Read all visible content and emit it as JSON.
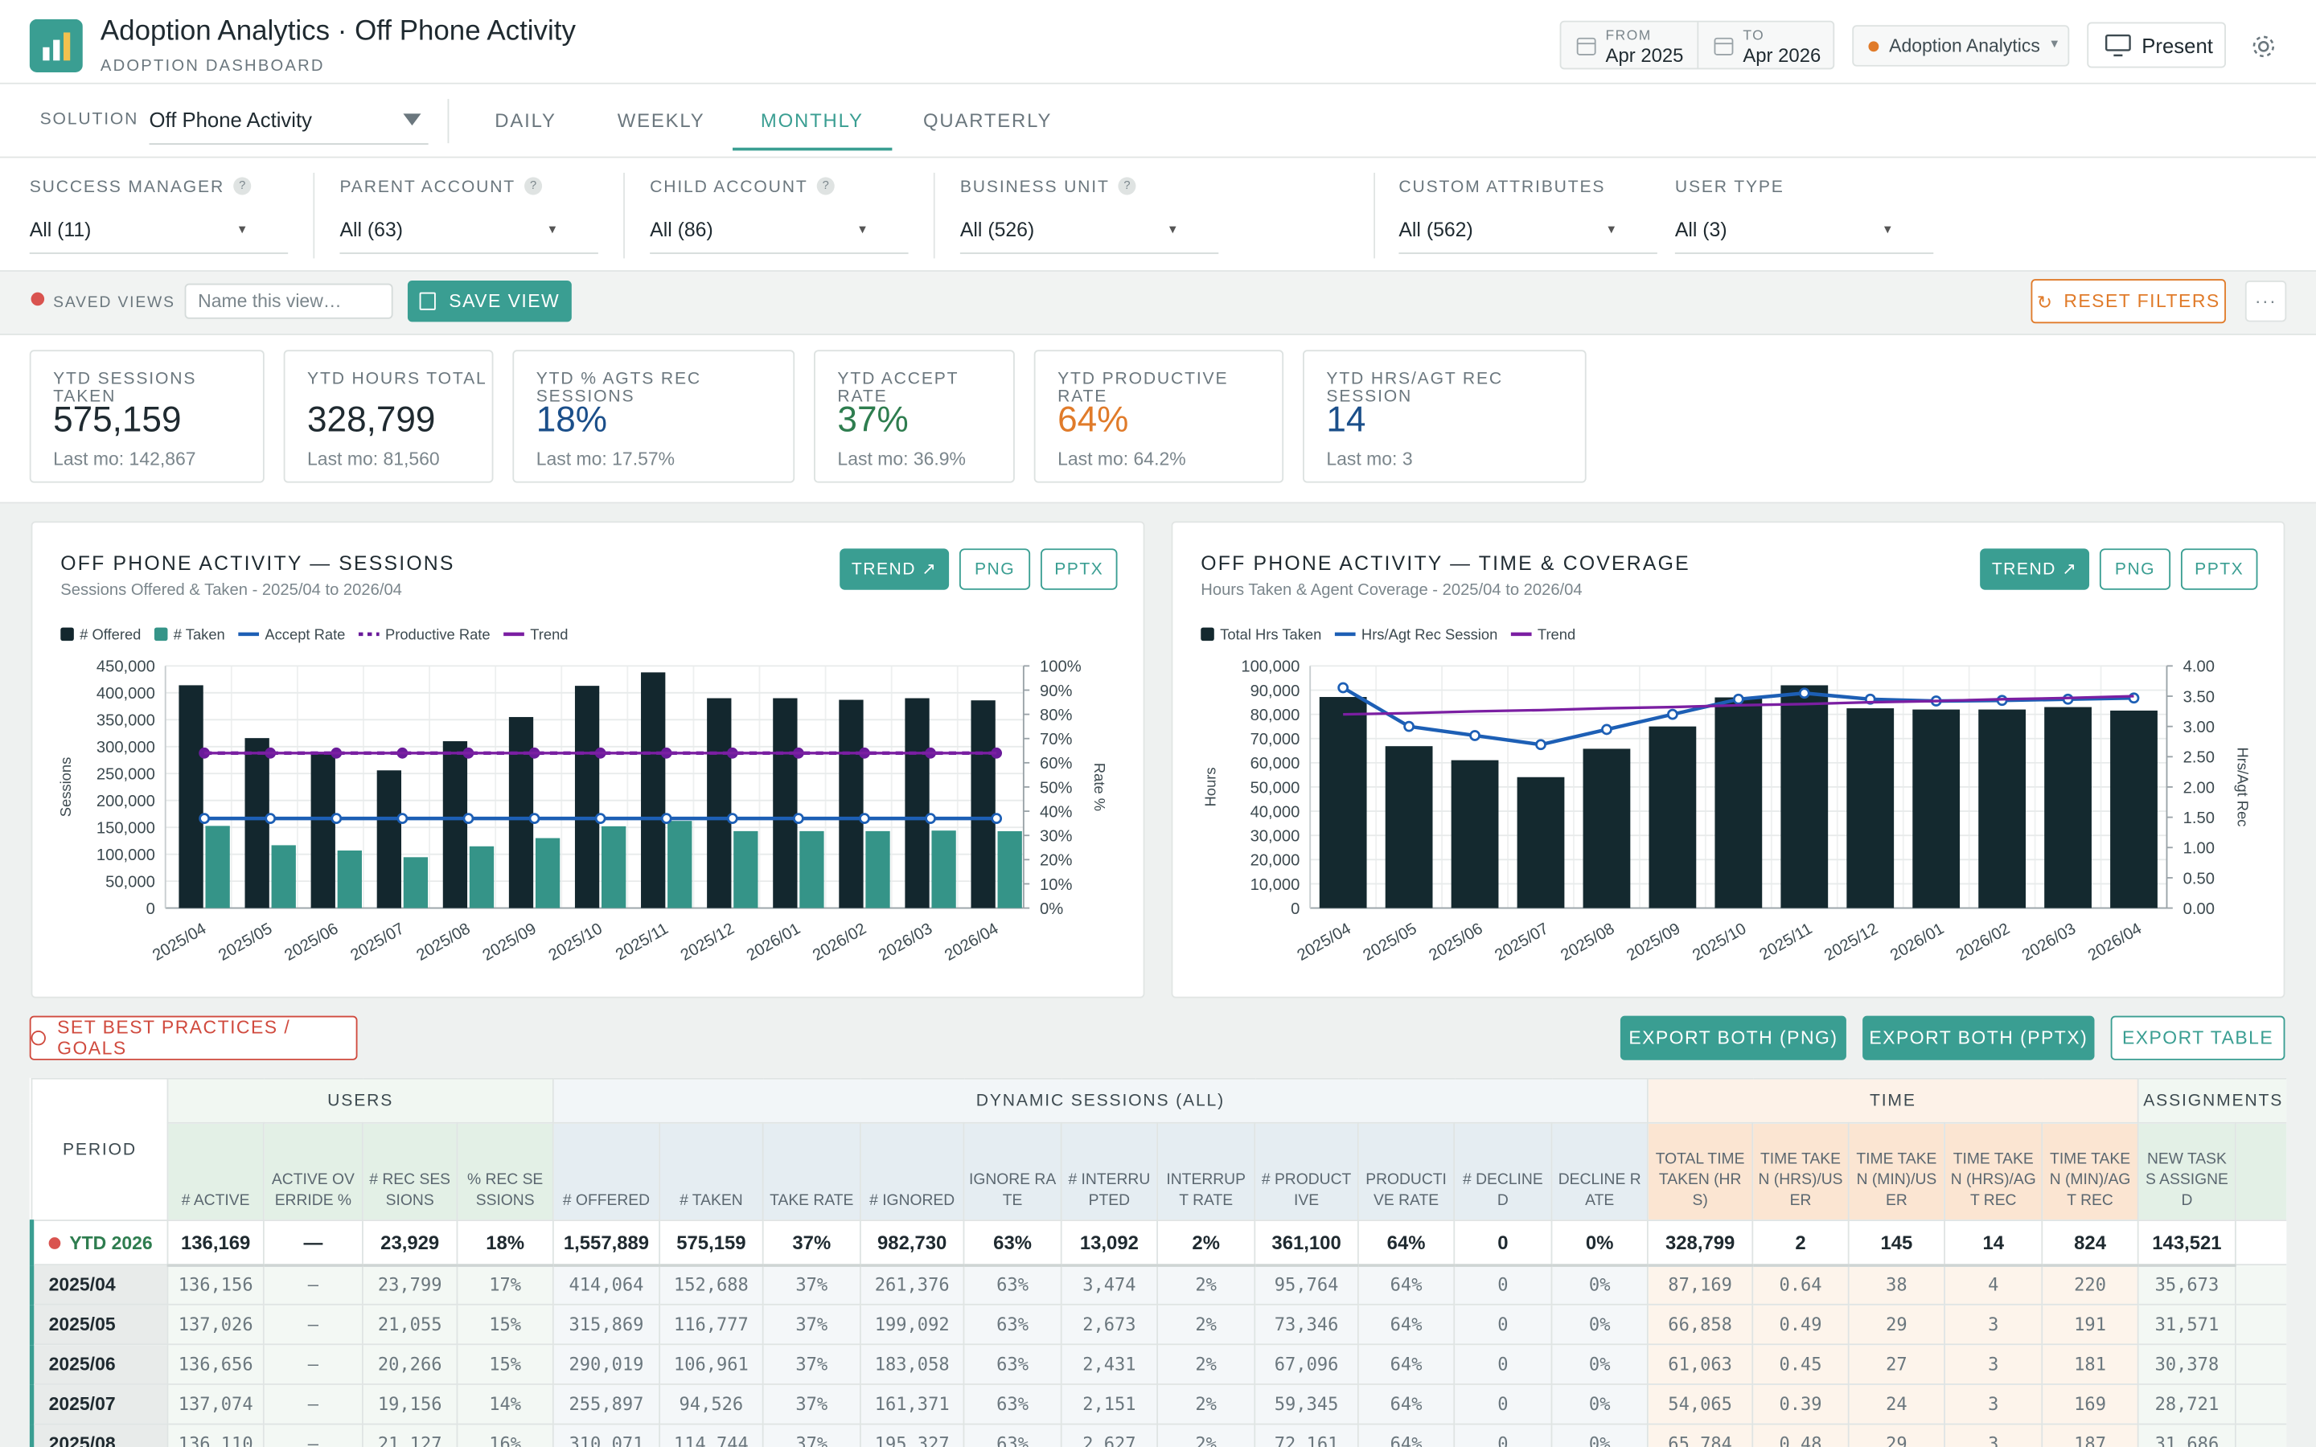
{
  "header": {
    "title": "Adoption Analytics · Off Phone Activity",
    "subtitle": "ADOPTION DASHBOARD",
    "from_label": "FROM",
    "from": "Apr 2025",
    "to_label": "TO",
    "to": "Apr 2026",
    "workspace": "Adoption Analytics",
    "present": "Present"
  },
  "nav": {
    "solution_label": "SOLUTION",
    "solution": "Off Phone Activity",
    "tabs": [
      "DAILY",
      "WEEKLY",
      "MONTHLY",
      "QUARTERLY"
    ],
    "active_tab": 2
  },
  "filters": [
    {
      "label": "SUCCESS MANAGER",
      "value": "All (11)",
      "help": true
    },
    {
      "label": "PARENT ACCOUNT",
      "value": "All (63)",
      "help": true
    },
    {
      "label": "CHILD ACCOUNT",
      "value": "All (86)",
      "help": true
    },
    {
      "label": "BUSINESS UNIT",
      "value": "All (526)",
      "help": true
    },
    {
      "label": "CUSTOM ATTRIBUTES",
      "value": "All (562)",
      "help": false
    },
    {
      "label": "USER TYPE",
      "value": "All (3)",
      "help": false
    }
  ],
  "saved_views": {
    "label": "SAVED VIEWS",
    "placeholder": "Name this view…",
    "save": "SAVE VIEW",
    "reset": "RESET FILTERS"
  },
  "kpis": [
    {
      "label": "YTD SESSIONS TAKEN",
      "value": "575,159",
      "last": "Last mo: 142,867",
      "color": "#1f2a30"
    },
    {
      "label": "YTD HOURS TOTAL",
      "value": "328,799",
      "last": "Last mo: 81,560",
      "color": "#1f2a30"
    },
    {
      "label": "YTD % AGTS REC SESSIONS",
      "value": "18%",
      "last": "Last mo: 17.57%",
      "color": "#1b4f8a"
    },
    {
      "label": "YTD ACCEPT RATE",
      "value": "37%",
      "last": "Last mo: 36.9%",
      "color": "#2e7d4f"
    },
    {
      "label": "YTD PRODUCTIVE RATE",
      "value": "64%",
      "last": "Last mo: 64.2%",
      "color": "#e07b2a"
    },
    {
      "label": "YTD HRS/AGT REC SESSION",
      "value": "14",
      "last": "Last mo: 3",
      "color": "#1b4f8a"
    }
  ],
  "chart_data": [
    {
      "type": "bar",
      "title": "OFF PHONE ACTIVITY — SESSIONS",
      "subtitle": "Sessions Offered & Taken - 2025/04 to 2026/04",
      "buttons": [
        "TREND ↗",
        "PNG",
        "PPTX"
      ],
      "y_label": "Sessions",
      "y2_label": "Rate %",
      "grid": true,
      "categories": [
        "2025/04",
        "2025/05",
        "2025/06",
        "2025/07",
        "2025/08",
        "2025/09",
        "2025/10",
        "2025/11",
        "2025/12",
        "2026/01",
        "2026/02",
        "2026/03",
        "2026/04"
      ],
      "series": [
        {
          "name": "# Offered",
          "style": "bar",
          "color": "#13272e",
          "values": [
            414064,
            315869,
            290019,
            255897,
            310071,
            355000,
            413000,
            438000,
            390000,
            390000,
            387000,
            390000,
            386000
          ]
        },
        {
          "name": "# Taken",
          "style": "bar",
          "color": "#359488",
          "values": [
            152688,
            116777,
            106961,
            94526,
            114744,
            130000,
            152000,
            162000,
            143000,
            143000,
            143000,
            144000,
            142867
          ]
        },
        {
          "name": "Accept Rate",
          "style": "line",
          "axis": "y2",
          "color": "#1d5fb5",
          "values": [
            37,
            37,
            37,
            37,
            37,
            37,
            37,
            37,
            37,
            37,
            37,
            37,
            37
          ]
        },
        {
          "name": "Productive Rate",
          "style": "dashed",
          "axis": "y2",
          "color": "#6a1b9a",
          "values": [
            64,
            64,
            64,
            64,
            64,
            64,
            64,
            64,
            64,
            64,
            64,
            64,
            64
          ]
        },
        {
          "name": "Trend",
          "style": "trend",
          "axis": "y2",
          "color": "#7b1fa2",
          "values": [
            64,
            64,
            64,
            64,
            64,
            64,
            64,
            64,
            64,
            64,
            64,
            64,
            64
          ]
        }
      ],
      "ylim": [
        0,
        450000
      ],
      "yticks": [
        0,
        {
          "value": 50000,
          "label": "50,000"
        },
        {
          "value": 100000,
          "label": "100,000"
        },
        {
          "value": 150000,
          "label": "150,000"
        },
        {
          "value": 200000,
          "label": "200,000"
        },
        {
          "value": 250000,
          "label": "250,000"
        },
        {
          "value": 300000,
          "label": "300,000"
        },
        {
          "value": 350000,
          "label": "350,000"
        },
        {
          "value": 400000,
          "label": "400,000"
        },
        {
          "value": 450000,
          "label": "450,000"
        }
      ],
      "y2lim": [
        0,
        100
      ],
      "y2ticks": [
        {
          "value": 0,
          "label": "0%"
        },
        {
          "value": 10,
          "label": "10%"
        },
        {
          "value": 20,
          "label": "20%"
        },
        {
          "value": 30,
          "label": "30%"
        },
        {
          "value": 40,
          "label": "40%"
        },
        {
          "value": 50,
          "label": "50%"
        },
        {
          "value": 60,
          "label": "60%"
        },
        {
          "value": 70,
          "label": "70%"
        },
        {
          "value": 80,
          "label": "80%"
        },
        {
          "value": 90,
          "label": "90%"
        },
        {
          "value": 100,
          "label": "100%"
        }
      ]
    },
    {
      "type": "bar",
      "title": "OFF PHONE ACTIVITY — TIME & COVERAGE",
      "subtitle": "Hours Taken & Agent Coverage - 2025/04 to 2026/04",
      "buttons": [
        "TREND ↗",
        "PNG",
        "PPTX"
      ],
      "y_label": "Hours",
      "y2_label": "Hrs/Agt Rec",
      "grid": true,
      "categories": [
        "2025/04",
        "2025/05",
        "2025/06",
        "2025/07",
        "2025/08",
        "2025/09",
        "2025/10",
        "2025/11",
        "2025/12",
        "2026/01",
        "2026/02",
        "2026/03",
        "2026/04"
      ],
      "series": [
        {
          "name": "Total Hrs Taken",
          "style": "bar",
          "color": "#14292f",
          "values": [
            87169,
            66858,
            61063,
            54065,
            65784,
            75000,
            87000,
            92000,
            82500,
            82000,
            82000,
            83000,
            81560
          ]
        },
        {
          "name": "Hrs/Agt Rec Session",
          "style": "line",
          "axis": "y2",
          "color": "#1d5fb5",
          "values": [
            3.64,
            3.0,
            2.85,
            2.7,
            2.95,
            3.2,
            3.45,
            3.55,
            3.45,
            3.42,
            3.43,
            3.45,
            3.47
          ]
        },
        {
          "name": "Trend",
          "style": "trend",
          "axis": "y2",
          "color": "#7b1fa2",
          "values": [
            3.2,
            3.22,
            3.25,
            3.27,
            3.3,
            3.32,
            3.35,
            3.37,
            3.4,
            3.42,
            3.45,
            3.47,
            3.5
          ]
        }
      ],
      "ylim": [
        0,
        100000
      ],
      "yticks": [
        0,
        {
          "value": 10000,
          "label": "10,000"
        },
        {
          "value": 20000,
          "label": "20,000"
        },
        {
          "value": 30000,
          "label": "30,000"
        },
        {
          "value": 40000,
          "label": "40,000"
        },
        {
          "value": 50000,
          "label": "50,000"
        },
        {
          "value": 60000,
          "label": "60,000"
        },
        {
          "value": 70000,
          "label": "70,000"
        },
        {
          "value": 80000,
          "label": "80,000"
        },
        {
          "value": 90000,
          "label": "90,000"
        },
        {
          "value": 100000,
          "label": "100,000"
        }
      ],
      "y2lim": [
        0,
        4
      ],
      "y2ticks": [
        {
          "value": 0,
          "label": "0.00"
        },
        {
          "value": 0.5,
          "label": "0.50"
        },
        {
          "value": 1,
          "label": "1.00"
        },
        {
          "value": 1.5,
          "label": "1.50"
        },
        {
          "value": 2,
          "label": "2.00"
        },
        {
          "value": 2.5,
          "label": "2.50"
        },
        {
          "value": 3,
          "label": "3.00"
        },
        {
          "value": 3.5,
          "label": "3.50"
        },
        {
          "value": 4,
          "label": "4.00"
        }
      ]
    }
  ],
  "actions": {
    "goals": "SET BEST PRACTICES / GOALS",
    "exports": [
      "EXPORT BOTH (PNG)",
      "EXPORT BOTH (PPTX)",
      "EXPORT TABLE"
    ]
  },
  "table": {
    "period_header": "PERIOD",
    "groups": [
      {
        "label": "USERS",
        "span": 4,
        "color": "#e3f0e6"
      },
      {
        "label": "DYNAMIC SESSIONS (ALL)",
        "span": 11,
        "color": "#e5edf2"
      },
      {
        "label": "TIME",
        "span": 5,
        "color": "#fbe5d2"
      },
      {
        "label": "ASSIGNMENTS",
        "span": 1,
        "color": "#e3f0e6"
      }
    ],
    "columns": [
      "# ACTIVE",
      "ACTIVE OVERRIDE %",
      "# REC SESSIONS",
      "% REC SESSIONS",
      "# OFFERED",
      "# TAKEN",
      "TAKE RATE",
      "# IGNORED",
      "IGNORE RATE",
      "# INTERRUPTED",
      "INTERRUPT RATE",
      "# PRODUCTIVE",
      "PRODUCTIVE RATE",
      "# DECLINED",
      "DECLINE RATE",
      "TOTAL TIME TAKEN (HRS)",
      "TIME TAKEN (HRS)/USER",
      "TIME TAKEN (MIN)/USER",
      "TIME TAKEN (HRS)/AGT REC",
      "TIME TAKEN (MIN)/AGT REC",
      "NEW TASKS ASSIGNED"
    ],
    "rows": [
      {
        "period": "YTD 2026",
        "cells": [
          "136,169",
          "—",
          "23,929",
          "18%",
          "1,557,889",
          "575,159",
          "37%",
          "982,730",
          "63%",
          "13,092",
          "2%",
          "361,100",
          "64%",
          "0",
          "0%",
          "328,799",
          "2",
          "145",
          "14",
          "824",
          "143,521"
        ]
      },
      {
        "period": "2025/04",
        "cells": [
          "136,156",
          "–",
          "23,799",
          "17%",
          "414,064",
          "152,688",
          "37%",
          "261,376",
          "63%",
          "3,474",
          "2%",
          "95,764",
          "64%",
          "0",
          "0%",
          "87,169",
          "0.64",
          "38",
          "4",
          "220",
          "35,673"
        ]
      },
      {
        "period": "2025/05",
        "cells": [
          "137,026",
          "–",
          "21,055",
          "15%",
          "315,869",
          "116,777",
          "37%",
          "199,092",
          "63%",
          "2,673",
          "2%",
          "73,346",
          "64%",
          "0",
          "0%",
          "66,858",
          "0.49",
          "29",
          "3",
          "191",
          "31,571"
        ]
      },
      {
        "period": "2025/06",
        "cells": [
          "136,656",
          "–",
          "20,266",
          "15%",
          "290,019",
          "106,961",
          "37%",
          "183,058",
          "63%",
          "2,431",
          "2%",
          "67,096",
          "64%",
          "0",
          "0%",
          "61,063",
          "0.45",
          "27",
          "3",
          "181",
          "30,378"
        ]
      },
      {
        "period": "2025/07",
        "cells": [
          "137,074",
          "–",
          "19,156",
          "14%",
          "255,897",
          "94,526",
          "37%",
          "161,371",
          "63%",
          "2,151",
          "2%",
          "59,345",
          "64%",
          "0",
          "0%",
          "54,065",
          "0.39",
          "24",
          "3",
          "169",
          "28,721"
        ]
      },
      {
        "period": "2025/08",
        "cells": [
          "136,110",
          "–",
          "21,127",
          "16%",
          "310,071",
          "114,744",
          "37%",
          "195,327",
          "63%",
          "2,627",
          "2%",
          "72,161",
          "64%",
          "0",
          "0%",
          "65,784",
          "0.48",
          "29",
          "3",
          "187",
          "31,686"
        ]
      }
    ]
  }
}
